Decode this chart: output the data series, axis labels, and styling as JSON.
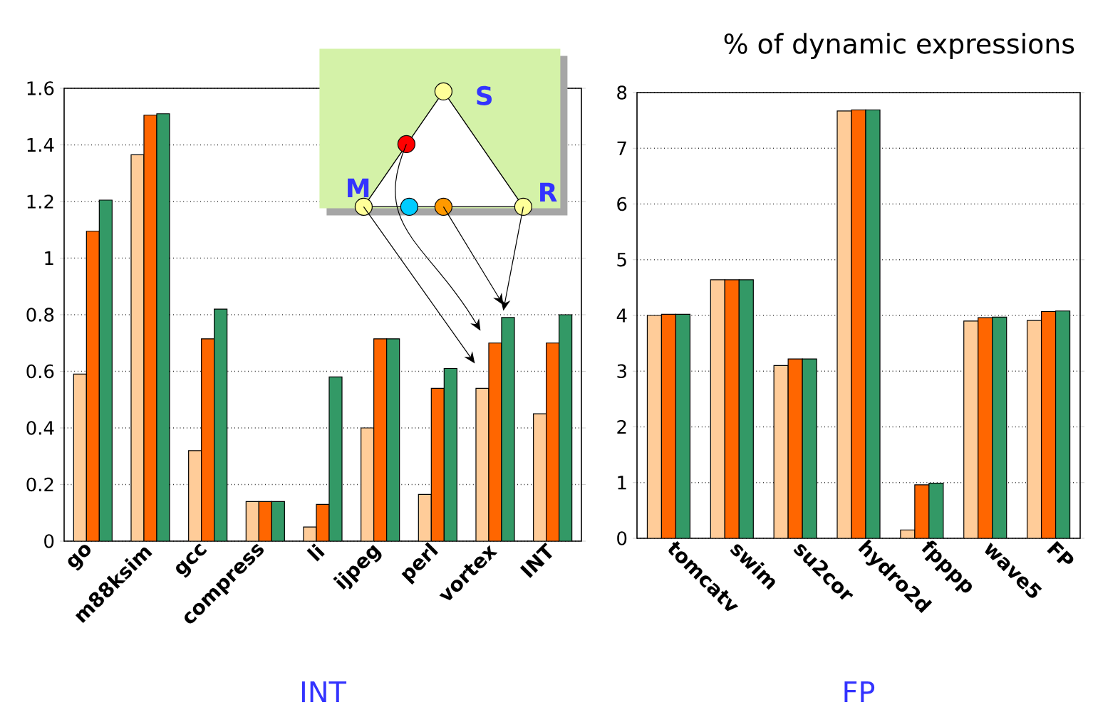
{
  "chart_data": [
    {
      "type": "bar",
      "xlabel": "INT",
      "categories": [
        "go",
        "m88ksim",
        "gcc",
        "compress",
        "li",
        "ijpeg",
        "perl",
        "vortex",
        "INT"
      ],
      "series": [
        {
          "color": "#ffcc99",
          "values": [
            0.59,
            1.365,
            0.32,
            0.14,
            0.05,
            0.4,
            0.165,
            0.54,
            0.45
          ]
        },
        {
          "color": "#ff6600",
          "values": [
            1.095,
            1.505,
            0.715,
            0.14,
            0.13,
            0.715,
            0.54,
            0.7,
            0.7
          ]
        },
        {
          "color": "#339966",
          "values": [
            1.205,
            1.51,
            0.82,
            0.14,
            0.58,
            0.715,
            0.61,
            0.79,
            0.8
          ]
        }
      ],
      "ylim": [
        0,
        1.6
      ],
      "yticks": [
        0,
        0.2,
        0.4,
        0.6,
        0.8,
        1,
        1.2,
        1.4,
        1.6
      ],
      "grid": "y",
      "annotations": [
        "S",
        "M",
        "R"
      ]
    },
    {
      "type": "bar",
      "title": "% of dynamic expressions",
      "xlabel": "FP",
      "categories": [
        "tomcatv",
        "swim",
        "su2cor",
        "hydro2d",
        "fpppp",
        "wave5",
        "FP"
      ],
      "series": [
        {
          "color": "#ffcc99",
          "values": [
            4.0,
            4.64,
            3.1,
            7.67,
            0.15,
            3.9,
            3.91
          ]
        },
        {
          "color": "#ff6600",
          "values": [
            4.02,
            4.64,
            3.22,
            7.69,
            0.96,
            3.96,
            4.07
          ]
        },
        {
          "color": "#339966",
          "values": [
            4.02,
            4.64,
            3.22,
            7.69,
            0.99,
            3.97,
            4.08
          ]
        }
      ],
      "ylim": [
        0,
        8
      ],
      "yticks": [
        0,
        1,
        2,
        3,
        4,
        5,
        6,
        7,
        8
      ],
      "grid": "y"
    }
  ]
}
